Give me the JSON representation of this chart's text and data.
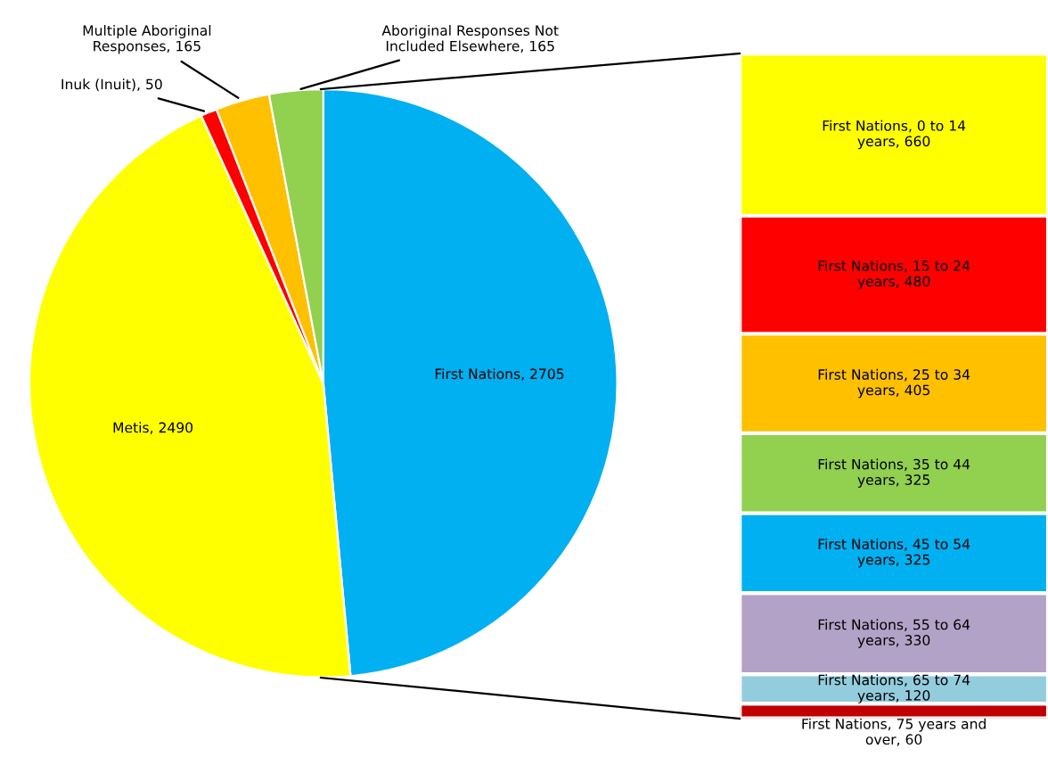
{
  "chart_data": [
    {
      "type": "pie",
      "categories": [
        null,
        null,
        null,
        null,
        null
      ],
      "values": [
        2705,
        2490,
        50,
        165,
        165
      ],
      "value_labels": [
        "First Nations, 2705",
        "Metis, 2490",
        "Inuk (Inuit), 50",
        "Multiple Aboriginal\nResponses, 165",
        "Aboriginal Responses Not\nIncluded Elsewhere, 165"
      ],
      "colors": [
        "#00b0f0",
        "#ffff00",
        "#ff0000",
        "#ffc000",
        "#92d050"
      ]
    },
    {
      "type": "bar",
      "stacked": true,
      "categories": [
        null
      ],
      "series": [
        {
          "color": "#c00000",
          "values": [
            60
          ],
          "value_labels": [
            "First Nations, 75 years and\nover, 60"
          ]
        },
        {
          "color": "#93cddd",
          "values": [
            120
          ],
          "value_labels": [
            "First Nations, 65 to 74\nyears, 120"
          ]
        },
        {
          "color": "#b3a2c7",
          "values": [
            330
          ],
          "value_labels": [
            "First Nations, 55 to 64\nyears, 330"
          ]
        },
        {
          "color": "#00b0f0",
          "values": [
            325
          ],
          "value_labels": [
            "First Nations, 45 to 54\nyears, 325"
          ]
        },
        {
          "color": "#92d050",
          "values": [
            325
          ],
          "value_labels": [
            "First Nations, 35 to 44\nyears, 325"
          ]
        },
        {
          "color": "#ffc000",
          "values": [
            405
          ],
          "value_labels": [
            "First Nations, 25 to 34\nyears, 405"
          ]
        },
        {
          "color": "#ff0000",
          "values": [
            480
          ],
          "value_labels": [
            "First Nations, 15 to 24\nyears, 480"
          ]
        },
        {
          "color": "#ffff00",
          "values": [
            660
          ],
          "value_labels": [
            "First Nations, 0 to 14\nyears, 660"
          ]
        }
      ]
    }
  ]
}
